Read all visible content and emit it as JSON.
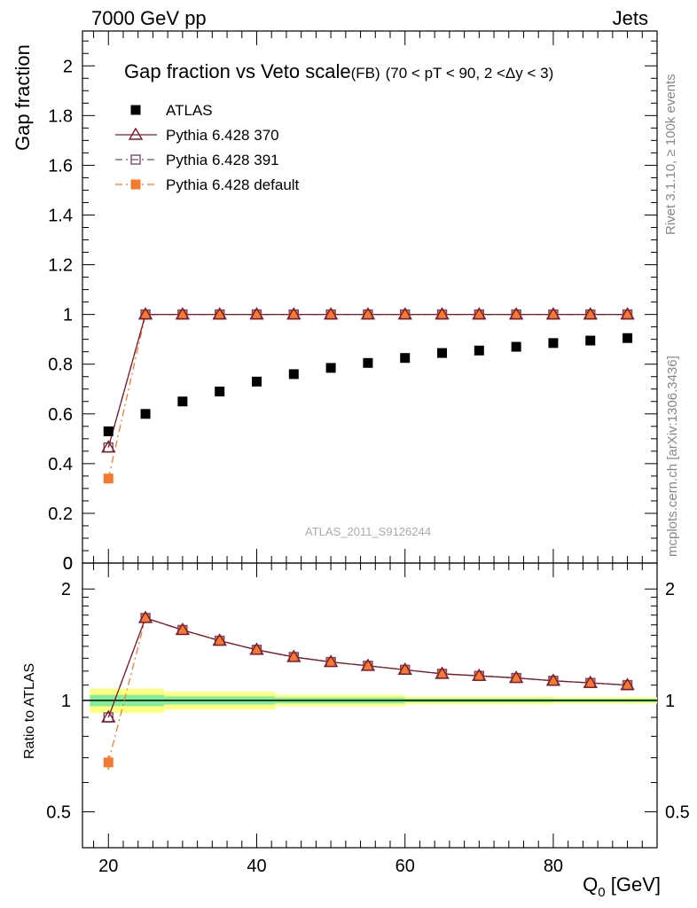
{
  "header": {
    "energy_label": "7000 GeV pp",
    "process_label": "Jets",
    "title_main": "Gap fraction vs Veto scale",
    "title_fb": "(FB)",
    "title_cuts": "(70 < pT <  90, 2 <Δy < 3)",
    "analysis_id": "ATLAS_2011_S9126244",
    "rivet_label": "Rivet 3.1.10, ≥ 100k events",
    "mcplots_label": "mcplots.cern.ch [arXiv:1306.3436]"
  },
  "chart_data": [
    {
      "type": "scatter",
      "panel": "main",
      "ylabel": "Gap fraction",
      "xlabel": "",
      "xlim": [
        16.5,
        94
      ],
      "ylim": [
        0,
        2.14
      ],
      "y_ticks": [
        "0",
        "0.2",
        "0.4",
        "0.6",
        "0.8",
        "1",
        "1.2",
        "1.4",
        "1.6",
        "1.8",
        "2"
      ],
      "x": [
        20,
        25,
        30,
        35,
        40,
        45,
        50,
        55,
        60,
        65,
        70,
        75,
        80,
        85,
        90
      ],
      "series": [
        {
          "name": "ATLAS",
          "color": "#000000",
          "marker": "square",
          "values": [
            0.53,
            0.6,
            0.65,
            0.69,
            0.73,
            0.76,
            0.785,
            0.805,
            0.825,
            0.845,
            0.855,
            0.87,
            0.885,
            0.895,
            0.905
          ]
        },
        {
          "name": "Pythia 6.428 370",
          "color": "#7f1a2a",
          "marker": "triangle-open",
          "line": "solid",
          "values": [
            0.465,
            1.0,
            1.0,
            1.0,
            1.0,
            1.0,
            1.0,
            1.0,
            1.0,
            1.0,
            1.0,
            1.0,
            1.0,
            1.0,
            1.0
          ]
        },
        {
          "name": "Pythia 6.428 391",
          "color": "#7a4b6b",
          "marker": "square-open",
          "line": "dashdot",
          "values": [
            0.465,
            1.0,
            1.0,
            1.0,
            1.0,
            1.0,
            1.0,
            1.0,
            1.0,
            1.0,
            1.0,
            1.0,
            1.0,
            1.0,
            1.0
          ]
        },
        {
          "name": "Pythia 6.428 default",
          "color": "#f47a30",
          "marker": "square",
          "line": "dashdot",
          "values": [
            0.34,
            1.0,
            1.0,
            1.0,
            1.0,
            1.0,
            1.0,
            1.0,
            1.0,
            1.0,
            1.0,
            1.0,
            1.0,
            1.0,
            1.0
          ]
        }
      ]
    },
    {
      "type": "scatter",
      "panel": "ratio",
      "ylabel": "Ratio to ATLAS",
      "xlabel": "Q",
      "xlabel_sub": "0",
      "xlabel_unit": " [GeV]",
      "xlim": [
        16.5,
        94
      ],
      "ylim": [
        0.4,
        2.35
      ],
      "y_ticks": [
        "0.5",
        "1",
        "2"
      ],
      "x_ticks": [
        "20",
        "40",
        "60",
        "80"
      ],
      "x": [
        20,
        25,
        30,
        35,
        40,
        45,
        50,
        55,
        60,
        65,
        70,
        75,
        80,
        85,
        90
      ],
      "series": [
        {
          "name": "Pythia 6.428 370",
          "color": "#7f1a2a",
          "marker": "triangle-open",
          "line": "solid",
          "values": [
            0.9,
            1.67,
            1.55,
            1.45,
            1.37,
            1.31,
            1.27,
            1.24,
            1.21,
            1.18,
            1.165,
            1.15,
            1.13,
            1.115,
            1.1
          ]
        },
        {
          "name": "Pythia 6.428 391",
          "color": "#7a4b6b",
          "marker": "square-open",
          "line": "dashdot",
          "values": [
            0.9,
            1.67,
            1.55,
            1.45,
            1.37,
            1.31,
            1.27,
            1.24,
            1.21,
            1.18,
            1.165,
            1.15,
            1.13,
            1.115,
            1.1
          ]
        },
        {
          "name": "Pythia 6.428 default",
          "color": "#f47a30",
          "marker": "square",
          "line": "dashdot",
          "values": [
            0.68,
            1.67,
            1.55,
            1.45,
            1.37,
            1.31,
            1.27,
            1.24,
            1.21,
            1.18,
            1.165,
            1.15,
            1.13,
            1.115,
            1.1
          ]
        }
      ],
      "uncertainty_band": {
        "x_edges": [
          17.5,
          27.5,
          42.5,
          60,
          80,
          94
        ],
        "yellow_half": [
          0.075,
          0.055,
          0.035,
          0.025,
          0.02
        ],
        "green_half": [
          0.035,
          0.025,
          0.018,
          0.012,
          0.01
        ]
      }
    }
  ]
}
